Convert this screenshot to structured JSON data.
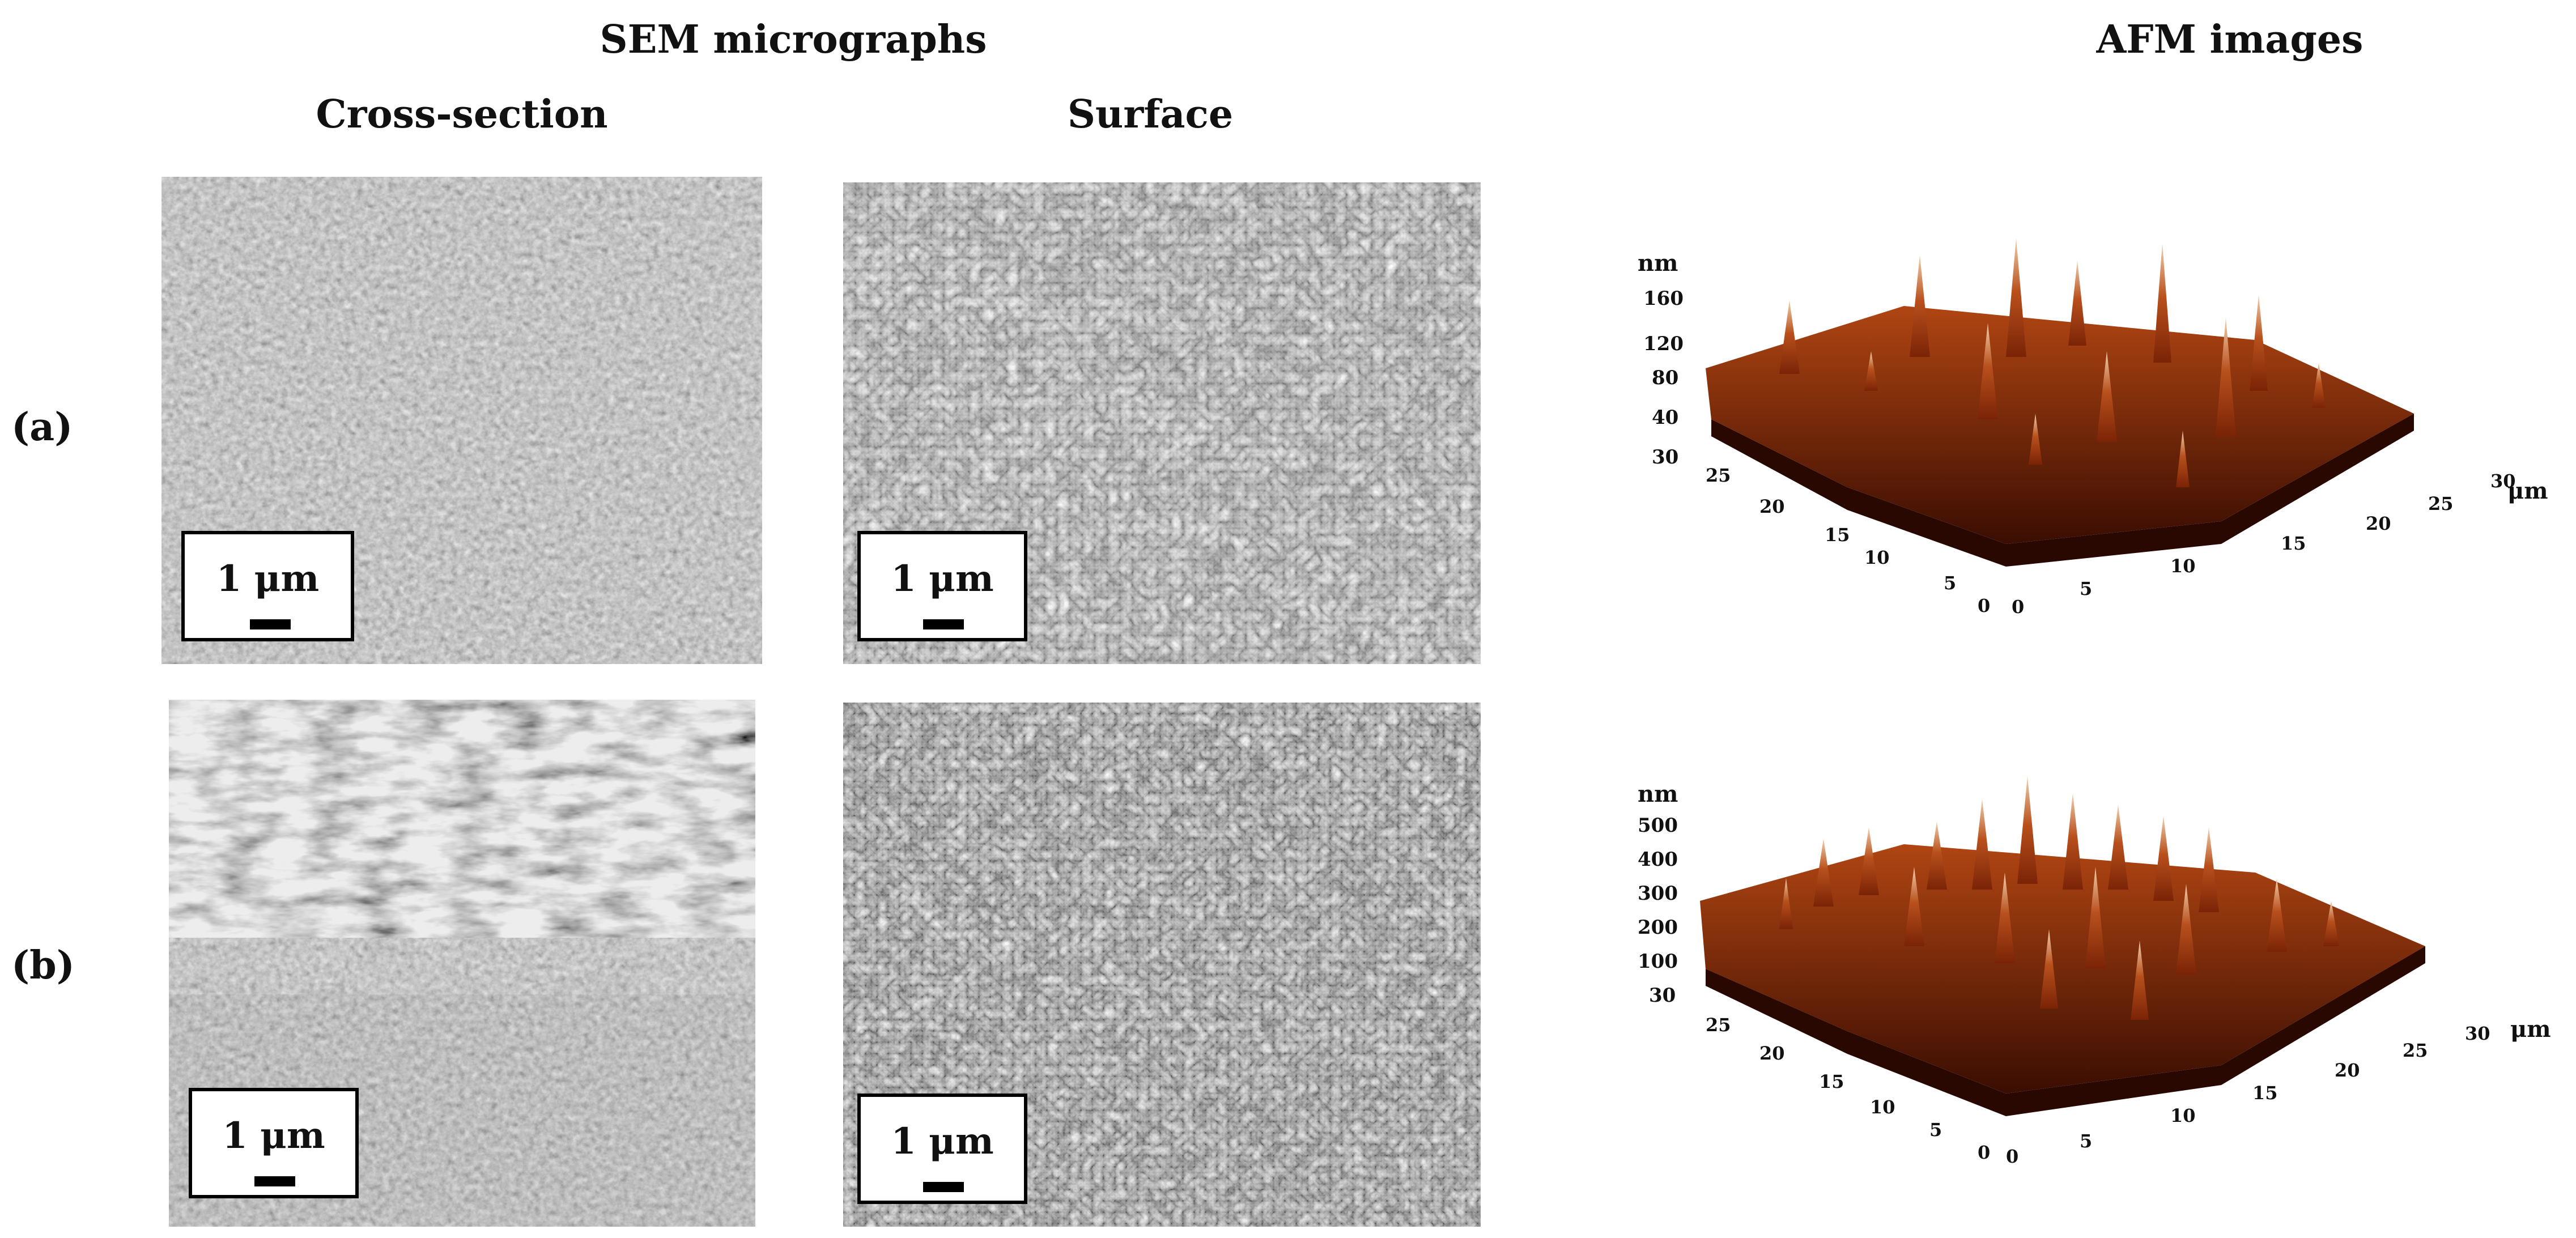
{
  "figure": {
    "headings": {
      "sem": "SEM micrographs",
      "afm": "AFM images",
      "cross_section": "Cross-section",
      "surface": "Surface"
    },
    "rows": [
      {
        "label": "(a)",
        "cross_section_scale": "1 μm",
        "surface_scale": "1 μm",
        "afm": {
          "z_unit": "nm",
          "z_ticks": [
            "160",
            "120",
            "80",
            "40",
            "30"
          ],
          "y_ticks": [
            "25",
            "20",
            "15",
            "10",
            "5",
            "0"
          ],
          "x_ticks": [
            "0",
            "5",
            "10",
            "15",
            "20",
            "25",
            "30"
          ],
          "xy_unit": "μm"
        }
      },
      {
        "label": "(b)",
        "cross_section_scale": "1 μm",
        "surface_scale": "1 μm",
        "afm": {
          "z_unit": "nm",
          "z_ticks": [
            "500",
            "400",
            "300",
            "200",
            "100",
            "30"
          ],
          "y_ticks": [
            "25",
            "20",
            "15",
            "10",
            "5",
            "0"
          ],
          "x_ticks": [
            "0",
            "5",
            "10",
            "15",
            "20",
            "25",
            "30"
          ],
          "xy_unit": "μm"
        }
      }
    ],
    "colors": {
      "afm_peak": "#e8b98e",
      "afm_base": "#8a2a0a",
      "afm_dark": "#3a0d02",
      "sem_gray": "#8a8a8a"
    }
  }
}
